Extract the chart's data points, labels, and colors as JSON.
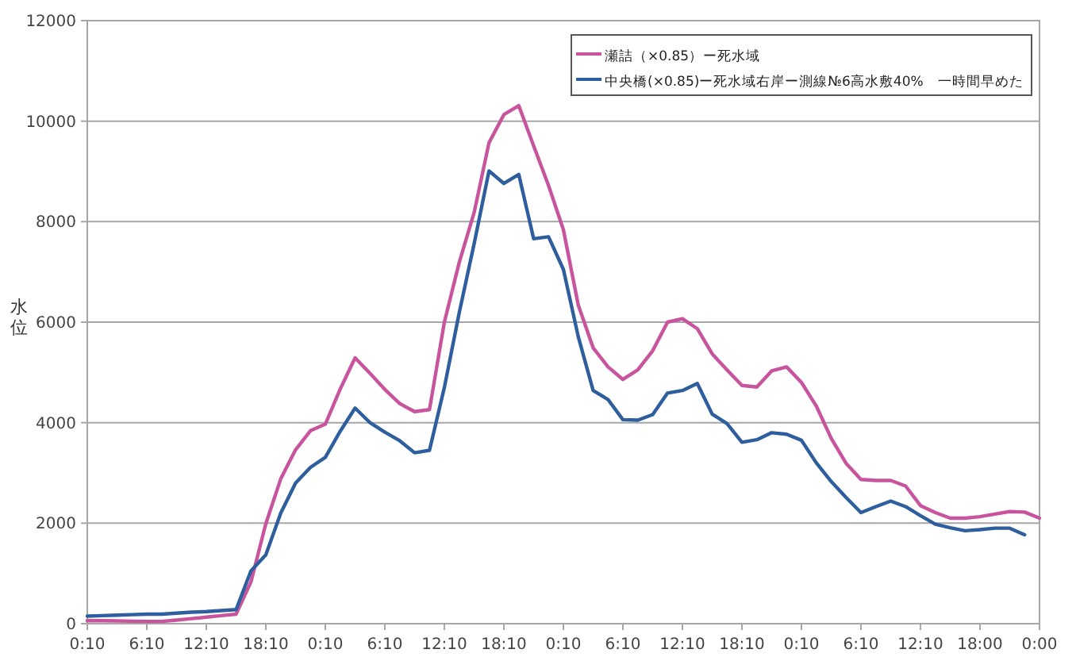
{
  "chart_data": {
    "type": "line",
    "ylabel": "水位",
    "categories": [
      "0:10",
      null,
      null,
      null,
      "6:10",
      null,
      null,
      null,
      "12:10",
      null,
      null,
      null,
      "18:10",
      null,
      null,
      null,
      "0:10",
      null,
      null,
      null,
      "6:10",
      null,
      null,
      null,
      "12:10",
      null,
      null,
      null,
      "18:10",
      null,
      null,
      null,
      "0:10",
      null,
      null,
      null,
      "6:10",
      null,
      null,
      null,
      "12:10",
      null,
      null,
      null,
      "18:10",
      null,
      null,
      null,
      "0:10",
      null,
      null,
      null,
      "6:10",
      null,
      null,
      null,
      "12:10",
      null,
      null,
      null,
      "18:00",
      null,
      null,
      null,
      "0:00"
    ],
    "ylim": [
      0,
      12000
    ],
    "yticks": [
      0,
      2000,
      4000,
      6000,
      8000,
      10000,
      12000
    ],
    "grid": "y",
    "legend": "top right",
    "marker": "none",
    "line_style": "solid",
    "series": [
      {
        "name": "瀬詰（×0.85）ー死水域",
        "color": "#c8549e",
        "values": [
          60,
          60,
          55,
          50,
          45,
          45,
          70,
          100,
          130,
          160,
          190,
          830,
          1990,
          2880,
          3460,
          3840,
          3970,
          4670,
          5290,
          4980,
          4660,
          4380,
          4220,
          4260,
          6000,
          7190,
          8180,
          9570,
          10130,
          10310,
          9510,
          8720,
          7840,
          6340,
          5490,
          5110,
          4860,
          5050,
          5430,
          6000,
          6070,
          5870,
          5370,
          5050,
          4740,
          4710,
          5030,
          5110,
          4800,
          4330,
          3690,
          3190,
          2870,
          2850,
          2850,
          2740,
          2350,
          2210,
          2100,
          2100,
          2130,
          2180,
          2230,
          2220,
          2100
        ]
      },
      {
        "name": "中央橋(×0.85)ー死水域右岸ー測線№6高水敷40%　一時間早めた",
        "color": "#2e5e9e",
        "values": [
          150,
          160,
          170,
          180,
          190,
          190,
          210,
          230,
          240,
          260,
          280,
          1050,
          1370,
          2200,
          2800,
          3110,
          3310,
          3830,
          4290,
          4000,
          3810,
          3640,
          3400,
          3450,
          4700,
          6190,
          7560,
          9010,
          8760,
          8940,
          7660,
          7700,
          7050,
          5710,
          4640,
          4460,
          4060,
          4050,
          4160,
          4590,
          4640,
          4780,
          4170,
          3980,
          3610,
          3660,
          3800,
          3770,
          3650,
          3200,
          2830,
          2510,
          2210,
          2330,
          2440,
          2330,
          2150,
          1980,
          1910,
          1850,
          1870,
          1900,
          1900,
          1770,
          null
        ]
      }
    ]
  }
}
